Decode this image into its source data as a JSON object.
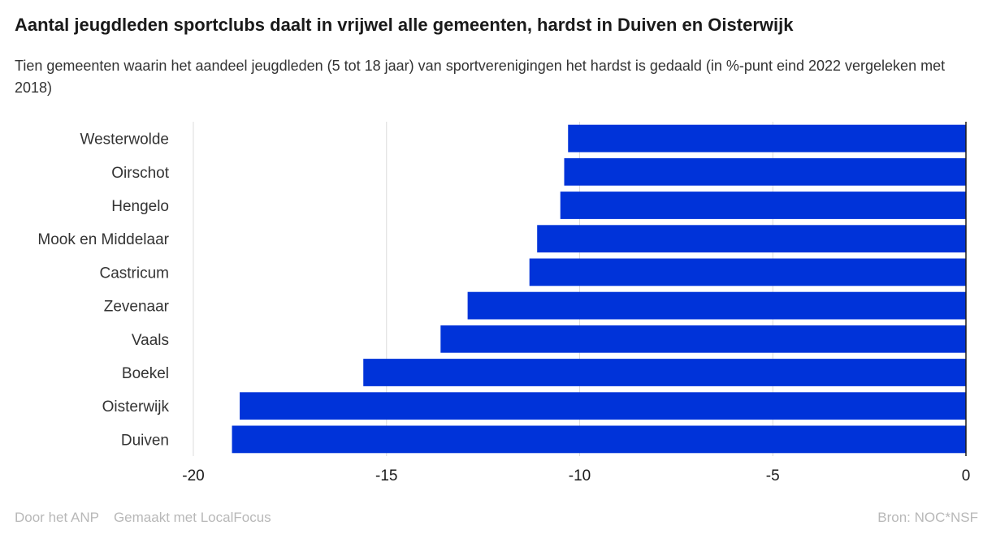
{
  "title": "Aantal jeugdleden sportclubs daalt in vrijwel alle gemeenten, hardst in Duiven en Oisterwijk",
  "subtitle": "Tien gemeenten waarin het aandeel jeugdleden (5 tot 18 jaar) van sportverenigingen het hardst is gedaald (in %-punt eind 2022 vergeleken met 2018)",
  "footer": {
    "author": "Door het ANP",
    "made_with": "Gemaakt met LocalFocus",
    "source": "Bron:  NOC*NSF"
  },
  "colors": {
    "bar": "#0033d9",
    "grid": "#dcdcdc",
    "axis": "#1a1a1a"
  },
  "chart_data": {
    "type": "bar",
    "orientation": "horizontal",
    "categories": [
      "Westerwolde",
      "Oirschot",
      "Hengelo",
      "Mook en Middelaar",
      "Castricum",
      "Zevenaar",
      "Vaals",
      "Boekel",
      "Oisterwijk",
      "Duiven"
    ],
    "values": [
      -10.3,
      -10.4,
      -10.5,
      -11.1,
      -11.3,
      -12.9,
      -13.6,
      -15.6,
      -18.8,
      -19.0
    ],
    "xlim": [
      -20,
      0
    ],
    "xticks": [
      -20,
      -15,
      -10,
      -5,
      0
    ],
    "xtick_labels": [
      "-20",
      "-15",
      "-10",
      "-5",
      "0"
    ],
    "grid": true
  }
}
